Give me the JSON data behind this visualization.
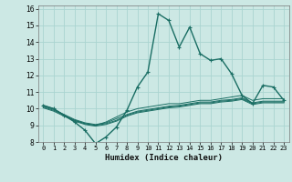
{
  "title": "",
  "xlabel": "Humidex (Indice chaleur)",
  "ylabel": "",
  "bg_color": "#cce8e4",
  "grid_color": "#aad4d0",
  "line_color": "#1a6e64",
  "xlim": [
    -0.5,
    23.5
  ],
  "ylim": [
    8,
    16.2
  ],
  "yticks": [
    8,
    9,
    10,
    11,
    12,
    13,
    14,
    15,
    16
  ],
  "xticks": [
    0,
    1,
    2,
    3,
    4,
    5,
    6,
    7,
    8,
    9,
    10,
    11,
    12,
    13,
    14,
    15,
    16,
    17,
    18,
    19,
    20,
    21,
    22,
    23
  ],
  "series": [
    [
      10.2,
      10.0,
      9.6,
      9.2,
      8.7,
      7.9,
      8.3,
      8.9,
      9.9,
      11.3,
      12.2,
      15.7,
      15.3,
      13.7,
      14.9,
      13.3,
      12.9,
      13.0,
      12.1,
      10.8,
      10.3,
      11.4,
      11.3,
      10.5
    ],
    [
      10.2,
      10.0,
      9.6,
      9.3,
      9.1,
      9.0,
      9.2,
      9.5,
      9.8,
      10.0,
      10.1,
      10.2,
      10.3,
      10.3,
      10.4,
      10.5,
      10.5,
      10.6,
      10.7,
      10.8,
      10.5,
      10.6,
      10.6,
      10.6
    ],
    [
      10.15,
      9.95,
      9.65,
      9.35,
      9.15,
      9.05,
      9.15,
      9.4,
      9.65,
      9.85,
      9.95,
      10.05,
      10.15,
      10.2,
      10.3,
      10.4,
      10.4,
      10.5,
      10.55,
      10.65,
      10.35,
      10.45,
      10.45,
      10.45
    ],
    [
      10.1,
      9.9,
      9.6,
      9.3,
      9.1,
      9.0,
      9.1,
      9.3,
      9.6,
      9.8,
      9.9,
      10.0,
      10.1,
      10.15,
      10.25,
      10.35,
      10.35,
      10.45,
      10.5,
      10.6,
      10.3,
      10.4,
      10.4,
      10.4
    ],
    [
      10.05,
      9.85,
      9.55,
      9.25,
      9.05,
      8.95,
      9.05,
      9.25,
      9.55,
      9.75,
      9.85,
      9.95,
      10.05,
      10.1,
      10.2,
      10.3,
      10.3,
      10.4,
      10.45,
      10.55,
      10.25,
      10.35,
      10.35,
      10.35
    ]
  ]
}
